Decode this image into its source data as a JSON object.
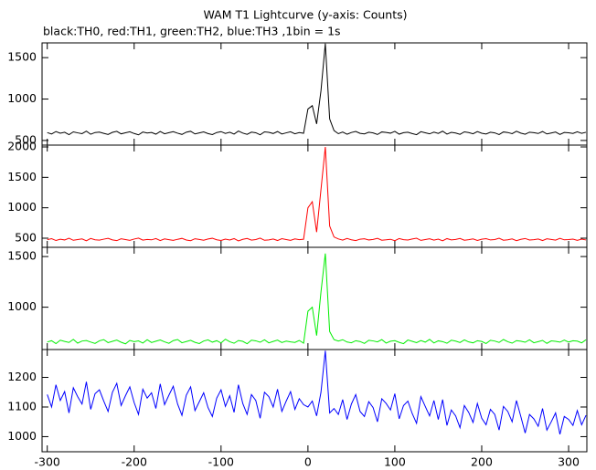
{
  "chart_data": {
    "type": "line",
    "title": "WAM T1 Lightcurve (y-axis: Counts)",
    "subtitle": "black:TH0, red:TH1, green:TH2, blue:TH3 ,1bin = 1s",
    "xlim": [
      -306,
      321
    ],
    "xticks": [
      -300,
      -200,
      -100,
      0,
      100,
      200,
      300
    ],
    "x": [
      -300,
      -295,
      -290,
      -285,
      -280,
      -275,
      -270,
      -265,
      -260,
      -255,
      -250,
      -245,
      -240,
      -235,
      -230,
      -225,
      -220,
      -215,
      -210,
      -205,
      -200,
      -195,
      -190,
      -185,
      -180,
      -175,
      -170,
      -165,
      -160,
      -155,
      -150,
      -145,
      -140,
      -135,
      -130,
      -125,
      -120,
      -115,
      -110,
      -105,
      -100,
      -95,
      -90,
      -85,
      -80,
      -75,
      -70,
      -65,
      -60,
      -55,
      -50,
      -45,
      -40,
      -35,
      -30,
      -25,
      -20,
      -15,
      -10,
      -5,
      0,
      5,
      10,
      15,
      20,
      25,
      30,
      35,
      40,
      45,
      50,
      55,
      60,
      65,
      70,
      75,
      80,
      85,
      90,
      95,
      100,
      105,
      110,
      115,
      120,
      125,
      130,
      135,
      140,
      145,
      150,
      155,
      160,
      165,
      170,
      175,
      180,
      185,
      190,
      195,
      200,
      205,
      210,
      215,
      220,
      225,
      230,
      235,
      240,
      245,
      250,
      255,
      260,
      265,
      270,
      275,
      280,
      285,
      290,
      295,
      300,
      305,
      310,
      315,
      320
    ],
    "series": [
      {
        "color": "#000000",
        "ylim": [
          444,
          1678
        ],
        "yticks": [
          500,
          1000,
          1500
        ],
        "values": [
          595,
          578,
          608,
          587,
          599,
          570,
          604,
          592,
          582,
          612,
          575,
          596,
          601,
          586,
          572,
          598,
          610,
          580,
          593,
          605,
          584,
          568,
          602,
          590,
          597,
          576,
          609,
          581,
          594,
          606,
          588,
          573,
          600,
          611,
          579,
          591,
          603,
          583,
          571,
          596,
          607,
          585,
          599,
          577,
          614,
          589,
          574,
          601,
          593,
          569,
          604,
          598,
          584,
          608,
          578,
          592,
          605,
          581,
          595,
          587,
          880,
          920,
          700,
          1100,
          1670,
          760,
          620,
          582,
          602,
          575,
          596,
          609,
          586,
          579,
          599,
          591,
          572,
          603,
          597,
          588,
          610,
          576,
          594,
          600,
          583,
          570,
          606,
          593,
          580,
          601,
          585,
          612,
          577,
          598,
          590,
          574,
          604,
          595,
          581,
          607,
          587,
          578,
          599,
          592,
          571,
          603,
          596,
          582,
          611,
          589,
          575,
          600,
          594,
          584,
          608,
          579,
          590,
          602,
          573,
          597,
          593,
          585,
          605,
          586,
          599
        ]
      },
      {
        "color": "#ff0000",
        "ylim": [
          350,
          2030
        ],
        "yticks": [
          500,
          1000,
          1500,
          2000
        ],
        "values": [
          475,
          492,
          462,
          483,
          471,
          500,
          466,
          478,
          488,
          458,
          495,
          474,
          469,
          484,
          498,
          472,
          460,
          490,
          477,
          465,
          486,
          502,
          468,
          480,
          473,
          494,
          461,
          489,
          476,
          464,
          482,
          497,
          470,
          459,
          491,
          479,
          467,
          487,
          499,
          474,
          463,
          485,
          471,
          493,
          456,
          481,
          496,
          469,
          477,
          501,
          466,
          472,
          486,
          462,
          492,
          478,
          465,
          489,
          475,
          483,
          1000,
          1100,
          600,
          1300,
          2000,
          700,
          520,
          488,
          468,
          495,
          474,
          461,
          484,
          491,
          471,
          479,
          498,
          467,
          473,
          482,
          460,
          494,
          476,
          470,
          487,
          500,
          464,
          477,
          490,
          469,
          485,
          458,
          493,
          472,
          480,
          496,
          466,
          475,
          489,
          463,
          483,
          492,
          471,
          478,
          499,
          467,
          474,
          488,
          459,
          481,
          495,
          470,
          476,
          486,
          462,
          491,
          480,
          468,
          497,
          473,
          477,
          485,
          465,
          484,
          471
        ]
      },
      {
        "color": "#00ee00",
        "ylim": [
          582,
          1591
        ],
        "yticks": [
          1000,
          1500
        ],
        "values": [
          657,
          669,
          640,
          674,
          662,
          652,
          682,
          645,
          666,
          671,
          656,
          642,
          668,
          680,
          650,
          663,
          675,
          654,
          638,
          672,
          660,
          667,
          646,
          679,
          651,
          664,
          676,
          658,
          643,
          670,
          681,
          649,
          661,
          673,
          653,
          641,
          666,
          677,
          655,
          669,
          647,
          684,
          659,
          644,
          671,
          663,
          639,
          674,
          668,
          654,
          678,
          648,
          662,
          675,
          651,
          665,
          657,
          652,
          672,
          645,
          960,
          1000,
          720,
          1150,
          1530,
          760,
          680,
          666,
          679,
          656,
          649,
          669,
          661,
          642,
          673,
          667,
          658,
          680,
          646,
          664,
          670,
          653,
          640,
          676,
          663,
          650,
          671,
          655,
          682,
          647,
          668,
          660,
          644,
          674,
          665,
          651,
          677,
          657,
          648,
          669,
          662,
          641,
          673,
          666,
          652,
          681,
          659,
          645,
          670,
          664,
          654,
          678,
          649,
          660,
          672,
          643,
          667,
          663,
          655,
          675,
          656,
          669,
          665,
          648,
          678
        ]
      },
      {
        "color": "#0000ff",
        "ylim": [
          949,
          1294
        ],
        "yticks": [
          1000,
          1100,
          1200
        ],
        "values": [
          1142,
          1100,
          1175,
          1122,
          1152,
          1080,
          1165,
          1135,
          1110,
          1185,
          1092,
          1145,
          1158,
          1120,
          1085,
          1150,
          1180,
          1105,
          1138,
          1168,
          1115,
          1075,
          1160,
          1130,
          1148,
          1095,
          1178,
          1108,
          1140,
          1170,
          1110,
          1072,
          1140,
          1168,
          1088,
          1118,
          1148,
          1098,
          1068,
          1130,
          1158,
          1102,
          1138,
          1082,
          1175,
          1112,
          1075,
          1142,
          1122,
          1062,
          1150,
          1135,
          1100,
          1160,
          1085,
          1120,
          1152,
          1092,
          1128,
          1108,
          1100,
          1120,
          1070,
          1150,
          1290,
          1080,
          1095,
          1075,
          1125,
          1058,
          1110,
          1142,
          1085,
          1068,
          1118,
          1098,
          1050,
          1128,
          1112,
          1090,
          1145,
          1060,
          1105,
          1120,
          1078,
          1045,
          1135,
          1102,
          1070,
          1122,
          1058,
          1125,
          1038,
          1090,
          1070,
          1030,
          1105,
          1082,
          1048,
          1112,
          1062,
          1040,
          1092,
          1075,
          1022,
          1102,
          1085,
          1050,
          1122,
          1068,
          1012,
          1075,
          1060,
          1035,
          1095,
          1022,
          1050,
          1080,
          1008,
          1068,
          1058,
          1038,
          1088,
          1040,
          1072
        ]
      }
    ]
  }
}
